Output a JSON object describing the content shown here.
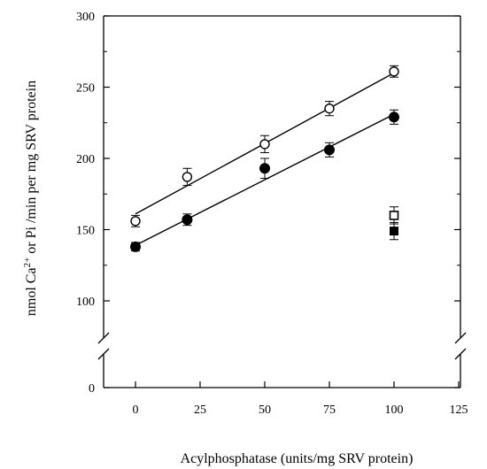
{
  "chart_data": {
    "type": "scatter",
    "xlabel": "Acylphosphatase (units/mg SRV protein)",
    "ylabel": "nmol Ca²⁺ or Pi /min per mg SRV protein",
    "xlim": [
      -20,
      125
    ],
    "ylim": [
      0,
      300
    ],
    "axis_break": "between 0 and 100 on y axis",
    "x_ticks": [
      0,
      25,
      50,
      75,
      100,
      125
    ],
    "y_ticks": [
      0,
      100,
      150,
      200,
      250,
      300
    ],
    "grid": false,
    "series": [
      {
        "marker": "open-circle",
        "x": [
          0,
          20,
          50,
          75,
          100
        ],
        "y": [
          156,
          187,
          210,
          235,
          261
        ],
        "error": [
          4,
          6,
          6,
          5,
          4
        ],
        "fit_line": [
          [
            0,
            161
          ],
          [
            100,
            260
          ]
        ]
      },
      {
        "marker": "filled-circle",
        "x": [
          0,
          20,
          50,
          75,
          100
        ],
        "y": [
          138,
          157,
          193,
          206,
          229
        ],
        "error": [
          3,
          4,
          7,
          5,
          5
        ],
        "fit_line": [
          [
            0,
            139
          ],
          [
            100,
            231
          ]
        ]
      },
      {
        "marker": "open-square",
        "x": [
          100
        ],
        "y": [
          160
        ],
        "error": [
          6
        ]
      },
      {
        "marker": "filled-square",
        "x": [
          100
        ],
        "y": [
          149
        ],
        "error": [
          6
        ]
      }
    ]
  }
}
